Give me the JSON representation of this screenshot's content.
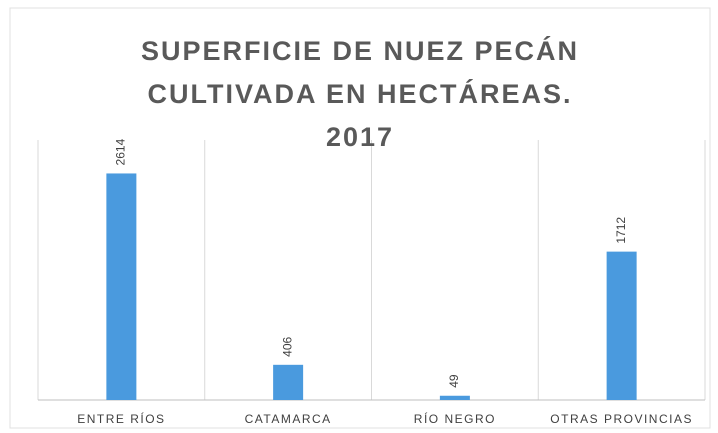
{
  "chart_data": {
    "type": "bar",
    "title": "SUPERFICIE DE NUEZ PECÁN CULTIVADA EN HECTÁREAS. 2017",
    "categories": [
      "ENTRE RÍOS",
      "CATAMARCA",
      "RÍO NEGRO",
      "OTRAS PROVINCIAS"
    ],
    "values": [
      2614,
      406,
      49,
      1712
    ],
    "color": "#4a9ade",
    "ylim": [
      0,
      3000
    ]
  }
}
